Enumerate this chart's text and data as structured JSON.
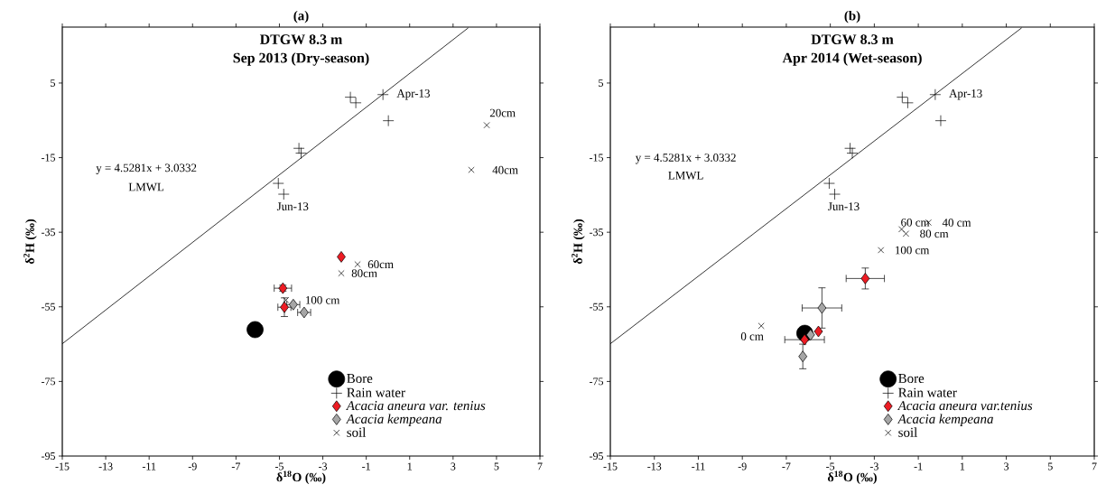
{
  "chart_data": [
    {
      "type": "scatter",
      "title": "(a)",
      "subtitle": "DTGW 8.3 m",
      "xlabel": "δ$^{18}$O  (‰)",
      "ylabel": "δ$^{2}$H (‰)",
      "xlim": [
        -15,
        7
      ],
      "ylim": [
        -95,
        20
      ],
      "xticks": [
        -15,
        -13,
        -11,
        -9,
        -7,
        -5,
        -3,
        -1,
        1,
        3,
        5,
        7
      ],
      "yticks": [
        -95,
        -75,
        -55,
        -35,
        -15,
        5
      ],
      "grid": false,
      "legend": "bottom right",
      "series": [
        {
          "name": "Bore",
          "color": "#000000",
          "marker": "circle",
          "x": [
            -6.12
          ],
          "values": [
            -61.1
          ]
        },
        {
          "name": "Rain water",
          "color": "#000000",
          "marker": "plus",
          "x": [
            -1.73,
            -1.48,
            -0.23,
            0.02,
            -4.1,
            -4.0,
            -5.05,
            -4.8
          ],
          "values": [
            1.2,
            -0.3,
            1.9,
            -5.1,
            -12.5,
            -13.8,
            -21.9,
            -24.8
          ]
        },
        {
          "name": "*Acacia aneura var. tenius*",
          "color": "#ed1c24",
          "marker": "diamond",
          "x": [
            -2.15,
            -4.84,
            -4.77
          ],
          "values": [
            -41.6,
            -50.0,
            -55.1
          ],
          "xerrors": [
            null,
            0.4,
            0.3
          ],
          "errors": [
            null,
            0.8,
            2.5
          ]
        },
        {
          "name": "*Acacia kempeana*",
          "color": "#a6a6a6",
          "marker": "diamond",
          "x": [
            -4.36,
            -3.86
          ],
          "values": [
            -54.4,
            -56.5
          ],
          "xerrors": [
            0.3,
            0.3
          ],
          "errors": [
            null,
            null
          ]
        },
        {
          "name": "soil",
          "color": "#000000",
          "marker": "cross",
          "x": [
            4.55,
            3.84,
            -1.4,
            -2.15,
            -4.7
          ],
          "values": [
            -6.3,
            -18.3,
            -43.6,
            -46.0,
            -53.2
          ]
        },
        {
          "type": "line",
          "color": "#000000",
          "marker": "none",
          "line_style": "solid",
          "x": [
            -15,
            3.7
          ],
          "values": [
            -64.9,
            19.8
          ]
        }
      ],
      "annotations": [
        "Sep 2013 (Dry-season)",
        "y = 4.5281x + 3.0332",
        "LMWL",
        {
          "text": "Apr-13",
          "x": -0.23,
          "y": 1.9
        },
        {
          "text": "Jun-13",
          "x": -4.8,
          "y": -24.8
        },
        {
          "text": "20cm",
          "x": 4.55,
          "y": -6.3
        },
        {
          "text": "40cm",
          "x": 3.84,
          "y": -18.3
        },
        {
          "text": "60cm",
          "x": -1.4,
          "y": -43.6
        },
        {
          "text": "80cm",
          "x": -2.15,
          "y": -46.0
        },
        {
          "text": "100 cm",
          "x": -4.7,
          "y": -53.2
        }
      ]
    },
    {
      "type": "scatter",
      "title": "(b)",
      "subtitle": "DTGW 8.3 m",
      "xlabel": "δ$^{18}$O  (‰)",
      "ylabel": "δ$^{2}$H (‰)",
      "xlim": [
        -15,
        7
      ],
      "ylim": [
        -95,
        20
      ],
      "xticks": [
        -15,
        -13,
        -11,
        -9,
        -7,
        -5,
        -3,
        -1,
        1,
        3,
        5,
        7
      ],
      "yticks": [
        -95,
        -75,
        -55,
        -35,
        -15,
        5
      ],
      "grid": false,
      "legend": "bottom right",
      "series": [
        {
          "name": "Bore",
          "color": "#000000",
          "marker": "circle",
          "x": [
            -6.16
          ],
          "values": [
            -62.1
          ]
        },
        {
          "name": "Rain water",
          "color": "#000000",
          "marker": "plus",
          "x": [
            -1.73,
            -1.48,
            -0.23,
            0.02,
            -4.1,
            -4.0,
            -5.05,
            -4.8
          ],
          "values": [
            1.2,
            -0.3,
            1.9,
            -5.1,
            -12.5,
            -13.8,
            -21.9,
            -24.8
          ]
        },
        {
          "name": "*Acacia aneura var.tenius*",
          "color": "#ed1c24",
          "marker": "diamond",
          "x": [
            -3.41,
            -5.54,
            -6.17
          ],
          "values": [
            -47.4,
            -61.6,
            -63.8
          ],
          "xerrors": [
            0.87,
            null,
            0.9
          ],
          "errors": [
            2.8,
            null,
            null
          ]
        },
        {
          "name": "*Acacia kempeana*",
          "color": "#a6a6a6",
          "marker": "diamond",
          "x": [
            -5.38,
            -5.9,
            -6.25
          ],
          "values": [
            -55.3,
            -62.5,
            -68.3
          ],
          "xerrors": [
            0.9,
            null,
            null
          ],
          "errors": [
            5.4,
            null,
            3.3
          ]
        },
        {
          "name": "soil",
          "color": "#000000",
          "marker": "cross",
          "x": [
            -8.14,
            -1.76,
            -0.54,
            -1.56,
            -2.7
          ],
          "values": [
            -60.1,
            -34.2,
            -32.4,
            -35.4,
            -39.8
          ]
        },
        {
          "type": "line",
          "color": "#000000",
          "marker": "none",
          "line_style": "solid",
          "x": [
            -15,
            3.7
          ],
          "values": [
            -64.9,
            19.8
          ]
        }
      ],
      "annotations": [
        "Apr 2014 (Wet-season)",
        "y = 4.5281x + 3.0332",
        "LMWL",
        {
          "text": "Apr-13",
          "x": -0.23,
          "y": 1.9
        },
        {
          "text": "Jun-13",
          "x": -4.8,
          "y": -24.8
        },
        {
          "text": "60 cm",
          "x": -1.76,
          "y": -34.2
        },
        {
          "text": "40 cm",
          "x": -0.54,
          "y": -32.4
        },
        {
          "text": "80 cm",
          "x": -1.56,
          "y": -35.4
        },
        {
          "text": "100 cm",
          "x": -2.7,
          "y": -39.8
        },
        {
          "text": "0 cm",
          "x": -8.14,
          "y": -60.1
        }
      ]
    }
  ]
}
